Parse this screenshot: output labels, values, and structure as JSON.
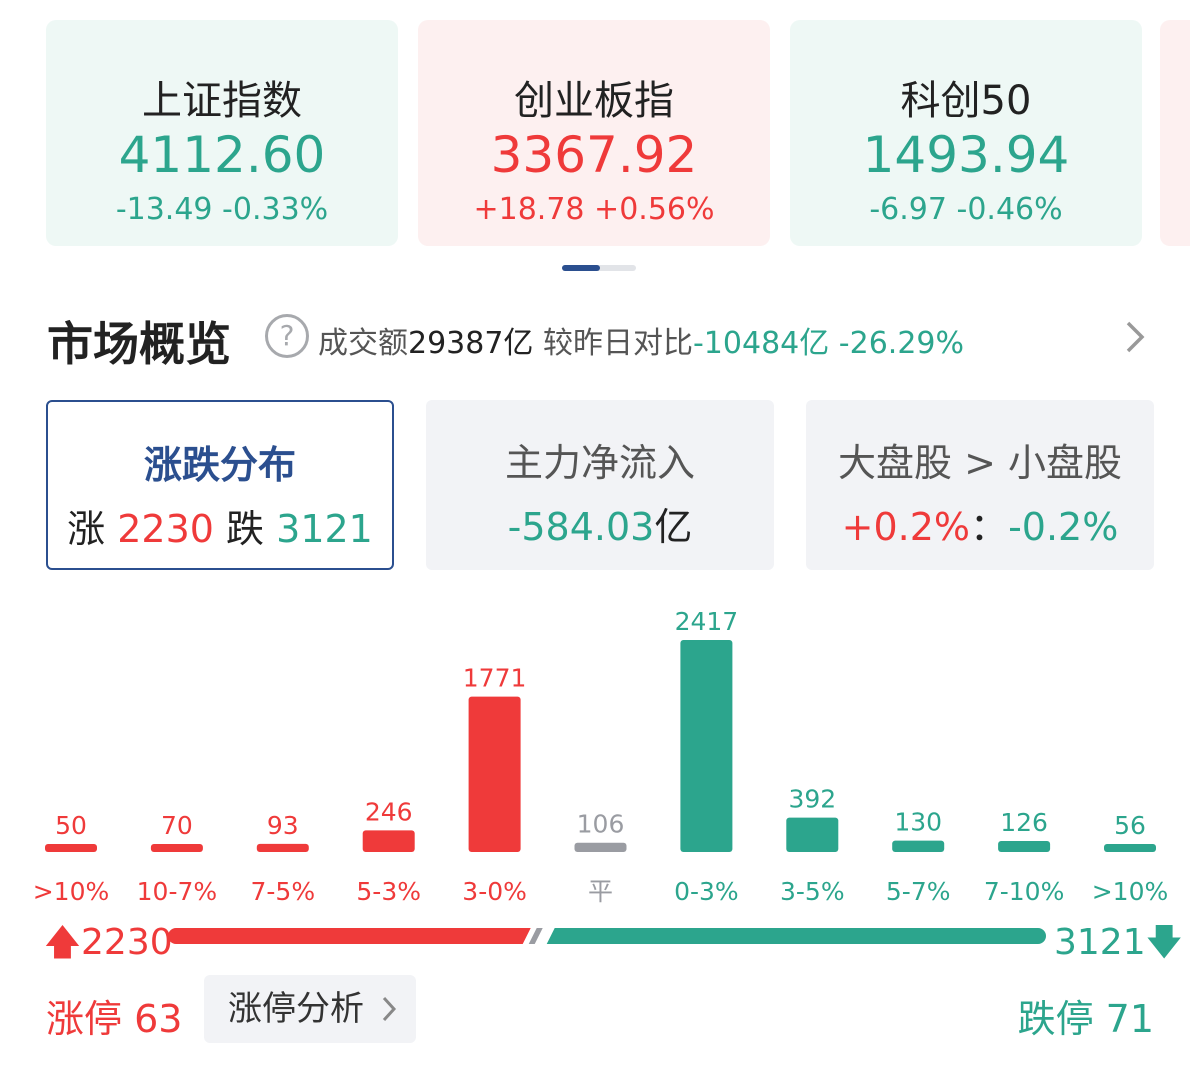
{
  "indices": [
    {
      "name": "上证指数",
      "price": "4112.60",
      "change": "-13.49 -0.33%",
      "direction": "down"
    },
    {
      "name": "创业板指",
      "price": "3367.92",
      "change": "+18.78 +0.56%",
      "direction": "up"
    },
    {
      "name": "科创50",
      "price": "1493.94",
      "change": "-6.97 -0.46%",
      "direction": "down"
    }
  ],
  "overview": {
    "title": "市场概览",
    "help_icon": "question-circle-icon",
    "turnover_label": "成交额",
    "turnover_value": "29387亿",
    "compare_label": "较昨日对比",
    "compare_value": "-10484亿",
    "compare_pct": "-26.29%"
  },
  "tabs": {
    "distribution": {
      "title": "涨跌分布",
      "up_label": "涨",
      "up_value": "2230",
      "down_label": "跌",
      "down_value": "3121"
    },
    "net_flow": {
      "title": "主力净流入",
      "value": "-584.03",
      "unit": "亿"
    },
    "cap_compare": {
      "title": "大盘股 > 小盘股",
      "big": "+0.2%",
      "sep": "：",
      "small": "-0.2%"
    }
  },
  "chart_data": {
    "type": "bar",
    "categories": [
      ">10%",
      "10-7%",
      "7-5%",
      "5-3%",
      "3-0%",
      "平",
      "0-3%",
      "3-5%",
      "5-7%",
      "7-10%",
      ">10%"
    ],
    "values": [
      50,
      70,
      93,
      246,
      1771,
      106,
      2417,
      392,
      130,
      126,
      56
    ],
    "value_labels": [
      "50",
      "70",
      "93",
      "246",
      "1771",
      "106",
      "2417",
      "392",
      "130",
      "126",
      "56"
    ],
    "colors": [
      "#ef3a3a",
      "#ef3a3a",
      "#ef3a3a",
      "#ef3a3a",
      "#ef3a3a",
      "#9a9ca2",
      "#2ca58d",
      "#2ca58d",
      "#2ca58d",
      "#2ca58d",
      "#2ca58d"
    ]
  },
  "ratio": {
    "up_count": "2230",
    "down_count": "3121",
    "up_value": 2230,
    "down_value": 3121
  },
  "limits": {
    "limit_up_label": "涨停 63",
    "analysis_label": "涨停分析",
    "limit_down_label": "跌停 71"
  },
  "colors": {
    "up": "#ef3a3a",
    "down": "#2ca58d",
    "flat": "#9a9ca2",
    "accent": "#2b4f8f"
  }
}
